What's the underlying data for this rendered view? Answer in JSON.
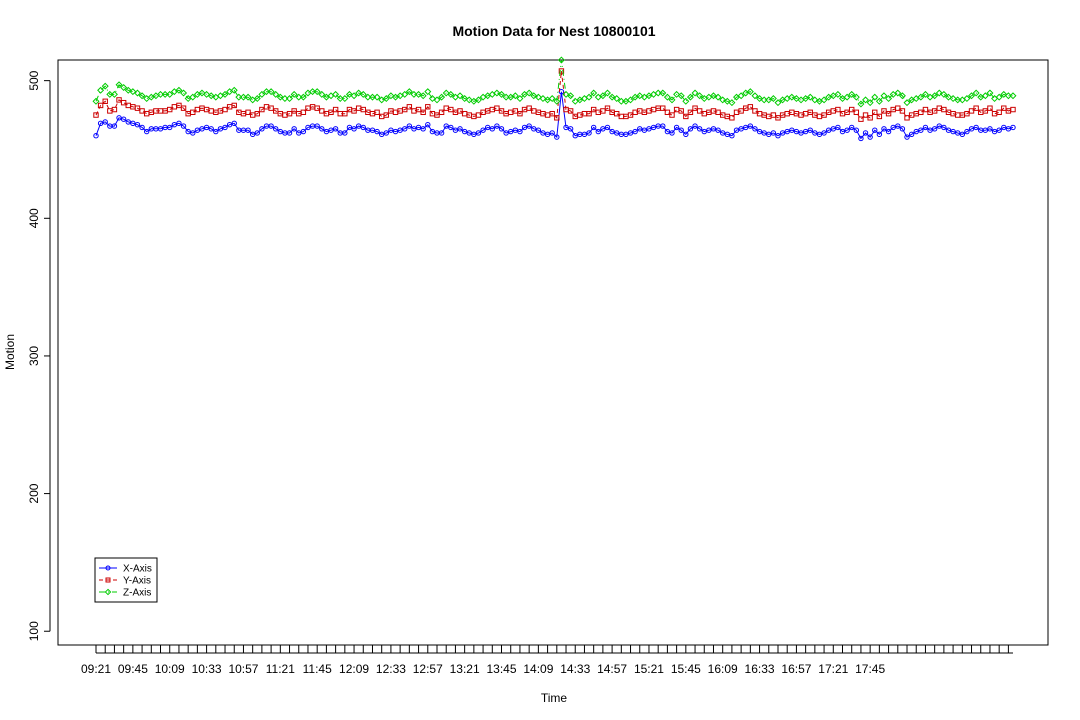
{
  "chart_data": {
    "type": "line",
    "title": "Motion Data for Nest 10800101",
    "xlabel": "Time",
    "ylabel": "Motion",
    "ylim": [
      90,
      515
    ],
    "yticks": [
      100,
      200,
      300,
      400,
      500
    ],
    "x_tick_labels": [
      "09:21",
      "09:45",
      "10:09",
      "10:33",
      "10:57",
      "11:21",
      "11:45",
      "12:09",
      "12:33",
      "12:57",
      "13:21",
      "13:45",
      "14:09",
      "14:33",
      "14:57",
      "15:21",
      "15:45",
      "16:09",
      "16:33",
      "16:57",
      "17:21",
      "17:45"
    ],
    "x_label_every": 8,
    "num_points": 200,
    "spike_index": 101,
    "legend_placement": "bottom-left",
    "series": [
      {
        "name": "X-Axis",
        "color": "#0000ff",
        "marker": "circle",
        "line_style": "solid",
        "base": 464,
        "amplitude": 3,
        "spike": 492,
        "values": [
          460,
          469,
          470,
          467,
          467,
          473,
          472,
          470,
          469,
          468,
          466,
          463,
          465,
          465,
          465,
          466,
          466,
          468,
          469,
          467,
          463,
          462,
          464,
          465,
          466,
          465,
          463,
          465,
          466,
          468,
          469,
          464,
          464,
          464,
          461,
          462,
          465,
          467,
          467,
          465,
          463,
          462,
          462,
          465,
          462,
          463,
          466,
          467,
          467,
          465,
          463,
          464,
          465,
          462,
          462,
          466,
          465,
          467,
          466,
          464,
          464,
          463,
          461,
          462,
          464,
          463,
          464,
          465,
          467,
          465,
          466,
          465,
          468,
          463,
          462,
          462,
          467,
          466,
          464,
          465,
          463,
          462,
          461,
          462,
          464,
          466,
          465,
          467,
          465,
          462,
          463,
          464,
          463,
          466,
          467,
          465,
          464,
          462,
          461,
          462,
          459,
          492,
          466,
          465,
          460,
          461,
          461,
          462,
          466,
          463,
          465,
          466,
          463,
          462,
          461,
          461,
          462,
          463,
          465,
          464,
          465,
          466,
          467,
          467,
          463,
          462,
          466,
          464,
          461,
          465,
          467,
          465,
          463,
          464,
          465,
          464,
          462,
          461,
          460,
          464,
          465,
          466,
          467,
          465,
          463,
          462,
          461,
          462,
          460,
          462,
          463,
          464,
          463,
          462,
          463,
          464,
          462,
          461,
          462,
          464,
          465,
          466,
          463,
          464,
          466,
          464,
          458,
          462,
          459,
          464,
          461,
          465,
          463,
          466,
          467,
          465,
          459,
          461,
          463,
          464,
          466,
          464,
          465,
          467,
          466,
          464,
          463,
          462,
          461,
          463,
          465,
          466,
          464,
          464,
          465,
          463,
          464,
          466,
          465,
          466
        ]
      },
      {
        "name": "Y-Axis",
        "color": "#cc0000",
        "marker": "square",
        "line_style": "dashed",
        "base": 477,
        "amplitude": 4,
        "spike": 507,
        "values": [
          475,
          482,
          485,
          478,
          479,
          486,
          484,
          482,
          481,
          480,
          478,
          476,
          477,
          478,
          478,
          478,
          479,
          481,
          482,
          480,
          476,
          477,
          479,
          480,
          479,
          478,
          477,
          478,
          479,
          481,
          482,
          477,
          476,
          477,
          475,
          476,
          479,
          481,
          480,
          478,
          476,
          475,
          476,
          478,
          476,
          477,
          480,
          481,
          480,
          478,
          476,
          477,
          479,
          476,
          476,
          479,
          478,
          480,
          479,
          477,
          476,
          477,
          474,
          475,
          478,
          477,
          478,
          479,
          481,
          478,
          479,
          477,
          481,
          476,
          475,
          477,
          480,
          479,
          477,
          478,
          476,
          475,
          474,
          475,
          477,
          478,
          479,
          480,
          478,
          476,
          477,
          478,
          476,
          479,
          480,
          478,
          477,
          476,
          475,
          476,
          473,
          507,
          479,
          478,
          474,
          475,
          476,
          476,
          479,
          477,
          478,
          480,
          477,
          476,
          474,
          474,
          475,
          477,
          478,
          477,
          478,
          479,
          480,
          480,
          477,
          475,
          479,
          478,
          474,
          477,
          480,
          478,
          476,
          477,
          478,
          477,
          475,
          474,
          473,
          477,
          478,
          480,
          481,
          478,
          476,
          475,
          474,
          475,
          473,
          475,
          476,
          477,
          476,
          475,
          476,
          477,
          475,
          474,
          475,
          477,
          478,
          479,
          476,
          477,
          479,
          477,
          472,
          475,
          473,
          477,
          474,
          478,
          476,
          479,
          480,
          478,
          473,
          475,
          476,
          477,
          479,
          477,
          478,
          480,
          479,
          477,
          476,
          475,
          475,
          476,
          478,
          480,
          477,
          478,
          480,
          476,
          477,
          480,
          478,
          479
        ]
      },
      {
        "name": "Z-Axis",
        "color": "#00cc00",
        "marker": "diamond",
        "line_style": "dashdot",
        "base": 489,
        "amplitude": 4,
        "spike": 515,
        "values": [
          485,
          493,
          496,
          490,
          490,
          497,
          495,
          493,
          492,
          491,
          489,
          487,
          488,
          489,
          490,
          490,
          490,
          492,
          493,
          491,
          487,
          488,
          490,
          491,
          490,
          489,
          488,
          489,
          490,
          492,
          493,
          488,
          488,
          488,
          486,
          487,
          490,
          492,
          492,
          490,
          488,
          487,
          487,
          490,
          488,
          488,
          491,
          492,
          492,
          490,
          488,
          489,
          490,
          487,
          487,
          490,
          489,
          491,
          490,
          488,
          488,
          488,
          486,
          487,
          489,
          488,
          489,
          490,
          492,
          490,
          490,
          489,
          492,
          487,
          486,
          488,
          491,
          490,
          488,
          489,
          487,
          486,
          485,
          486,
          488,
          489,
          490,
          491,
          490,
          488,
          488,
          489,
          487,
          490,
          491,
          489,
          488,
          487,
          486,
          487,
          485,
          515,
          490,
          489,
          485,
          486,
          487,
          488,
          491,
          488,
          489,
          491,
          488,
          487,
          485,
          485,
          486,
          488,
          489,
          488,
          489,
          490,
          491,
          491,
          488,
          486,
          490,
          489,
          485,
          488,
          491,
          489,
          487,
          488,
          489,
          488,
          486,
          485,
          484,
          488,
          489,
          491,
          492,
          489,
          487,
          486,
          486,
          487,
          484,
          486,
          487,
          488,
          487,
          486,
          487,
          488,
          486,
          485,
          486,
          488,
          489,
          490,
          487,
          488,
          490,
          488,
          483,
          486,
          484,
          488,
          485,
          489,
          487,
          490,
          491,
          489,
          484,
          486,
          487,
          488,
          490,
          488,
          489,
          491,
          490,
          488,
          487,
          486,
          486,
          487,
          489,
          491,
          488,
          489,
          491,
          487,
          488,
          490,
          489,
          489
        ]
      }
    ]
  }
}
